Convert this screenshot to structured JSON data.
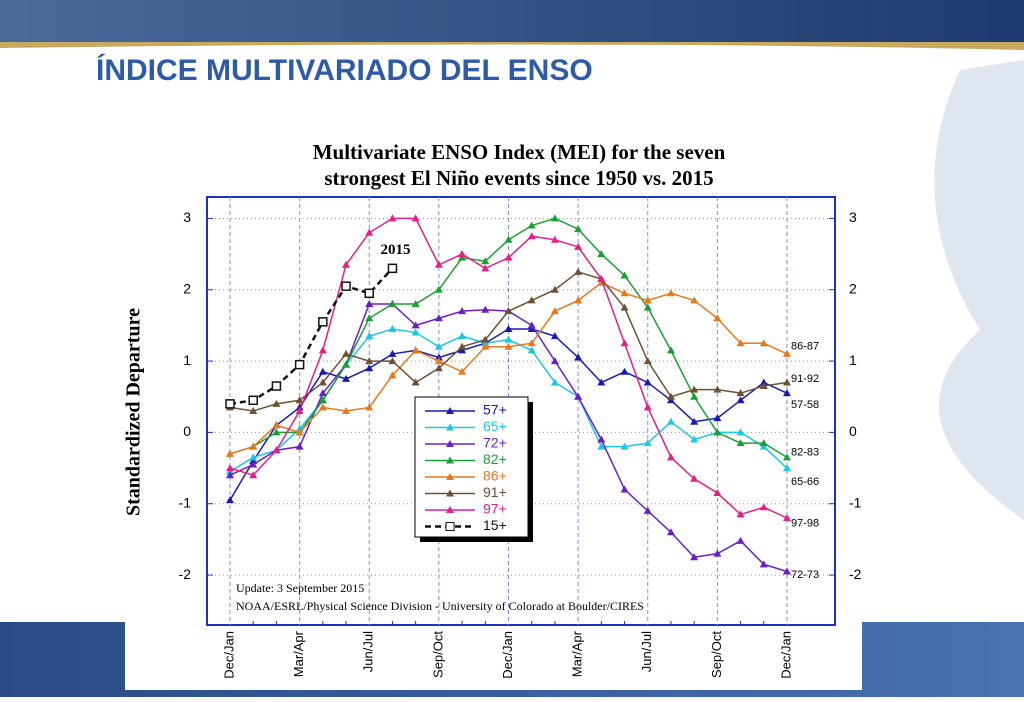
{
  "slide_title": "ÍNDICE MULTIVARIADO DEL ENSO",
  "chart_data": {
    "type": "line",
    "title": [
      "Multivariate ENSO Index (MEI) for the seven",
      "strongest El Niño events since 1950 vs. 2015"
    ],
    "y_label": "Standardized Departure",
    "notes": [
      "Update: 3 September 2015",
      "NOAA/ESRL/Physical Science Division - University of Colorado at Boulder/CIRES"
    ],
    "annotations": [
      {
        "text": "2015",
        "x": 7,
        "y": 2.55
      },
      {
        "text": "86-87",
        "x": 24,
        "y": 1.2
      },
      {
        "text": "91-92",
        "x": 24,
        "y": 0.75
      },
      {
        "text": "57-58",
        "x": 24,
        "y": 0.38
      },
      {
        "text": "82-83",
        "x": 24,
        "y": -0.28
      },
      {
        "text": "65-66",
        "x": 24,
        "y": -0.7
      },
      {
        "text": "97-98",
        "x": 24,
        "y": -1.28
      },
      {
        "text": "72-73",
        "x": 24,
        "y": -2.0
      }
    ],
    "categories": [
      "Dec/Jan",
      null,
      null,
      "Mar/Apr",
      null,
      null,
      "Jun/Jul",
      null,
      null,
      "Sep/Oct",
      null,
      null,
      "Dec/Jan",
      null,
      null,
      "Mar/Apr",
      null,
      null,
      "Jun/Jul",
      null,
      null,
      "Sep/Oct",
      null,
      null,
      "Dec/Jan"
    ],
    "ylim": [
      -2.7,
      3.3
    ],
    "yticks": [
      -2,
      -1,
      0,
      1,
      2,
      3
    ],
    "grid": true,
    "series": [
      {
        "name": "57+",
        "color": "#1a1ab0",
        "marker": "triangle",
        "values": [
          -0.95,
          -0.4,
          0.1,
          0.35,
          0.85,
          0.75,
          0.9,
          1.1,
          1.15,
          1.05,
          1.15,
          1.25,
          1.45,
          1.45,
          1.35,
          1.05,
          0.7,
          0.85,
          0.7,
          0.45,
          0.15,
          0.2,
          0.45,
          0.7,
          0.55
        ]
      },
      {
        "name": "65+",
        "color": "#19c8e6",
        "marker": "triangle",
        "values": [
          -0.55,
          -0.35,
          -0.25,
          0.05,
          0.45,
          0.95,
          1.35,
          1.45,
          1.4,
          1.2,
          1.35,
          1.25,
          1.3,
          1.15,
          0.7,
          0.5,
          -0.2,
          -0.2,
          -0.15,
          0.15,
          -0.1,
          0.0,
          0.0,
          -0.2,
          -0.5
        ]
      },
      {
        "name": "72+",
        "color": "#6a1ec8",
        "marker": "triangle",
        "values": [
          -0.6,
          -0.45,
          -0.25,
          -0.2,
          0.55,
          0.95,
          1.8,
          1.8,
          1.5,
          1.6,
          1.7,
          1.72,
          1.7,
          1.5,
          1.0,
          0.5,
          -0.1,
          -0.8,
          -1.1,
          -1.4,
          -1.75,
          -1.7,
          -1.52,
          -1.85,
          -1.95
        ]
      },
      {
        "name": "82+",
        "color": "#1aa032",
        "marker": "triangle",
        "values": [
          -0.3,
          -0.2,
          0.0,
          0.0,
          0.45,
          0.95,
          1.6,
          1.8,
          1.8,
          2.0,
          2.45,
          2.4,
          2.7,
          2.9,
          3.0,
          2.85,
          2.5,
          2.2,
          1.75,
          1.15,
          0.5,
          0.0,
          -0.15,
          -0.15,
          -0.35
        ]
      },
      {
        "name": "86+",
        "color": "#e8781e",
        "marker": "triangle",
        "values": [
          -0.3,
          -0.2,
          0.1,
          0.0,
          0.35,
          0.3,
          0.35,
          0.8,
          1.15,
          1.0,
          0.85,
          1.2,
          1.2,
          1.25,
          1.7,
          1.85,
          2.1,
          1.95,
          1.85,
          1.95,
          1.85,
          1.6,
          1.25,
          1.25,
          1.1
        ]
      },
      {
        "name": "91+",
        "color": "#6e5032",
        "marker": "triangle",
        "values": [
          0.35,
          0.3,
          0.4,
          0.45,
          0.7,
          1.1,
          1.0,
          1.0,
          0.7,
          0.9,
          1.2,
          1.3,
          1.7,
          1.85,
          2.0,
          2.25,
          2.15,
          1.75,
          1.0,
          0.5,
          0.6,
          0.6,
          0.55,
          0.65,
          0.7
        ]
      },
      {
        "name": "97+",
        "color": "#e61e8c",
        "marker": "triangle",
        "values": [
          -0.5,
          -0.6,
          -0.25,
          0.3,
          1.15,
          2.35,
          2.8,
          3.0,
          3.0,
          2.35,
          2.5,
          2.3,
          2.45,
          2.75,
          2.7,
          2.6,
          2.15,
          1.25,
          0.35,
          -0.35,
          -0.65,
          -0.85,
          -1.15,
          -1.05,
          -1.2
        ]
      },
      {
        "name": "15+",
        "color": "#111111",
        "marker": "square",
        "dashed": true,
        "values": [
          0.4,
          0.45,
          0.65,
          0.95,
          1.55,
          2.05,
          1.95,
          2.3,
          null,
          null,
          null,
          null,
          null,
          null,
          null,
          null,
          null,
          null,
          null,
          null,
          null,
          null,
          null,
          null,
          null
        ]
      }
    ]
  }
}
